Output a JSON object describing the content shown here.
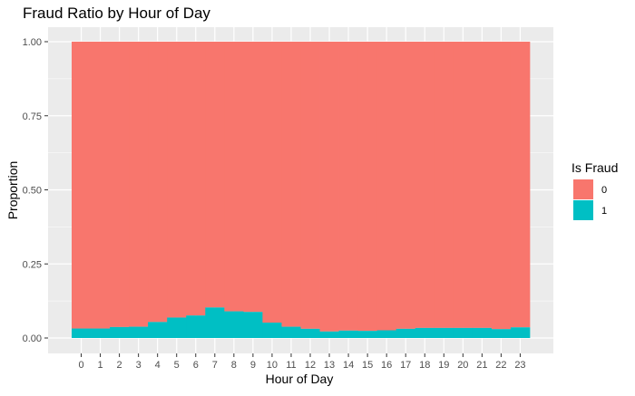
{
  "chart_data": {
    "type": "bar",
    "stacked": true,
    "title": "Fraud Ratio by Hour of Day",
    "xlabel": "Hour of Day",
    "ylabel": "Proportion",
    "categories": [
      "0",
      "1",
      "2",
      "3",
      "4",
      "5",
      "6",
      "7",
      "8",
      "9",
      "10",
      "11",
      "12",
      "13",
      "14",
      "15",
      "16",
      "17",
      "18",
      "19",
      "20",
      "21",
      "22",
      "23"
    ],
    "ylim": [
      0,
      1
    ],
    "yticks": [
      "0.00",
      "0.25",
      "0.50",
      "0.75",
      "1.00"
    ],
    "ytick_values": [
      0,
      0.25,
      0.5,
      0.75,
      1.0
    ],
    "series": [
      {
        "name": "0",
        "color": "#F8766D",
        "values": [
          0.968,
          0.968,
          0.963,
          0.962,
          0.946,
          0.931,
          0.924,
          0.897,
          0.91,
          0.912,
          0.948,
          0.962,
          0.969,
          0.978,
          0.975,
          0.976,
          0.974,
          0.969,
          0.966,
          0.966,
          0.966,
          0.966,
          0.97,
          0.964
        ]
      },
      {
        "name": "1",
        "color": "#00BFC4",
        "values": [
          0.032,
          0.032,
          0.037,
          0.038,
          0.054,
          0.069,
          0.076,
          0.103,
          0.09,
          0.088,
          0.052,
          0.038,
          0.031,
          0.022,
          0.025,
          0.024,
          0.026,
          0.031,
          0.034,
          0.034,
          0.034,
          0.034,
          0.03,
          0.036
        ]
      }
    ],
    "legend": {
      "title": "Is Fraud",
      "position": "right",
      "entries": [
        "0",
        "1"
      ]
    },
    "grid": true,
    "panel_background": "#EBEBEB",
    "grid_color": "#FFFFFF"
  }
}
